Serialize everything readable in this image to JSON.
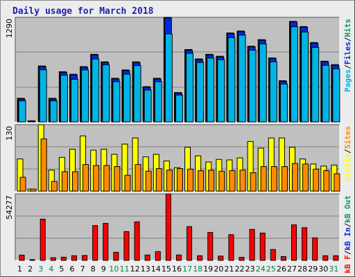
{
  "title": "Daily usage for March 2018",
  "colors": {
    "pages": "#00b4e6",
    "files": "#0028e0",
    "hits": "#009966",
    "visits": "#ffff00",
    "sites": "#ff8c00",
    "kb": "#ff0000",
    "weekend_tick": "#00804a",
    "weekday_tick": "#000000",
    "slash": "#000000"
  },
  "chart_data": [
    {
      "type": "bar",
      "panel": "hits-files-pages",
      "ymax_label": "1290",
      "ylim": [
        0,
        1290
      ],
      "legend": [
        "Pages",
        "/",
        "Files",
        "/",
        "Hits"
      ],
      "categories": [
        "1",
        "2",
        "3",
        "4",
        "5",
        "6",
        "7",
        "8",
        "9",
        "10",
        "11",
        "12",
        "13",
        "14",
        "15",
        "16",
        "17",
        "18",
        "19",
        "20",
        "21",
        "22",
        "23",
        "24",
        "25",
        "26",
        "27",
        "28",
        "29",
        "30",
        "31"
      ],
      "series": [
        {
          "name": "Hits",
          "values": [
            291,
            14,
            690,
            291,
            619,
            588,
            682,
            834,
            741,
            538,
            641,
            741,
            435,
            538,
            1290,
            362,
            893,
            777,
            834,
            810,
            1097,
            1121,
            934,
            1015,
            789,
            508,
            1240,
            1176,
            979,
            749,
            707
          ]
        },
        {
          "name": "Files",
          "values": [
            291,
            14,
            690,
            291,
            619,
            588,
            682,
            834,
            741,
            538,
            641,
            741,
            435,
            538,
            1290,
            362,
            893,
            777,
            834,
            810,
            1097,
            1121,
            934,
            1015,
            789,
            508,
            1240,
            1176,
            979,
            749,
            707
          ]
        },
        {
          "name": "Pages",
          "values": [
            276,
            5,
            660,
            276,
            593,
            542,
            658,
            793,
            720,
            513,
            606,
            712,
            410,
            513,
            1103,
            348,
            863,
            750,
            804,
            783,
            1056,
            1088,
            902,
            978,
            758,
            485,
            1190,
            1126,
            936,
            715,
            672
          ]
        }
      ]
    },
    {
      "type": "bar",
      "panel": "visits-sites",
      "ymax_label": "130",
      "ylim": [
        0,
        130
      ],
      "legend": [
        "Visits",
        "/",
        "Sites"
      ],
      "categories": [
        "1",
        "2",
        "3",
        "4",
        "5",
        "6",
        "7",
        "8",
        "9",
        "10",
        "11",
        "12",
        "13",
        "14",
        "15",
        "16",
        "17",
        "18",
        "19",
        "20",
        "21",
        "22",
        "23",
        "24",
        "25",
        "26",
        "27",
        "28",
        "29",
        "30",
        "31"
      ],
      "series": [
        {
          "name": "Visits",
          "values": [
            63,
            4,
            130,
            41,
            66,
            82,
            108,
            80,
            82,
            72,
            92,
            104,
            67,
            72,
            59,
            46,
            86,
            69,
            57,
            62,
            61,
            65,
            97,
            84,
            104,
            104,
            86,
            63,
            53,
            49,
            51
          ]
        },
        {
          "name": "Sites",
          "values": [
            27,
            4,
            102,
            19,
            38,
            38,
            52,
            50,
            50,
            48,
            31,
            52,
            39,
            44,
            41,
            44,
            43,
            40,
            41,
            39,
            40,
            41,
            36,
            48,
            48,
            48,
            54,
            53,
            43,
            40,
            34
          ]
        }
      ]
    },
    {
      "type": "bar",
      "panel": "kbytes",
      "ymax_label": "54277",
      "ylim": [
        0,
        54277
      ],
      "legend": [
        "kB F",
        "/",
        "kB In",
        "/",
        "kB Out"
      ],
      "categories": [
        "1",
        "2",
        "3",
        "4",
        "5",
        "6",
        "7",
        "8",
        "9",
        "10",
        "11",
        "12",
        "13",
        "14",
        "15",
        "16",
        "17",
        "18",
        "19",
        "20",
        "21",
        "22",
        "23",
        "24",
        "25",
        "26",
        "27",
        "28",
        "29",
        "30",
        "31"
      ],
      "series": [
        {
          "name": "kB F",
          "values": [
            4300,
            600,
            33700,
            2200,
            2600,
            3800,
            4000,
            28400,
            30200,
            6600,
            23500,
            31500,
            4400,
            7200,
            54277,
            4400,
            27600,
            3800,
            22800,
            3500,
            21000,
            2500,
            25300,
            22300,
            8900,
            3100,
            29000,
            26700,
            18400,
            3800,
            3800
          ]
        }
      ]
    }
  ],
  "weekend_days": [
    3,
    4,
    10,
    11,
    17,
    18,
    24,
    25,
    31
  ]
}
